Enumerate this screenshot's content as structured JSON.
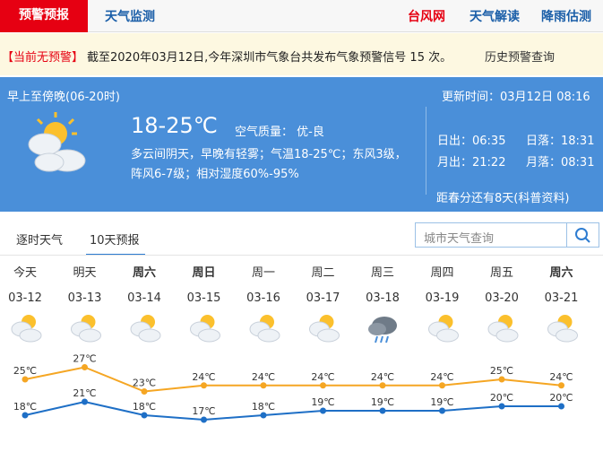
{
  "nav": {
    "active": "预警预报",
    "tab": "天气监测",
    "links": [
      "台风网",
      "天气解读",
      "降雨估测"
    ]
  },
  "alert": {
    "status": "【当前无预警】",
    "text": "截至2020年03月12日,今年深圳市气象台共发布气象预警信号 15 次。",
    "link": "历史预警查询"
  },
  "today": {
    "period": "早上至傍晚(06-20时)",
    "updated": "更新时间：03月12日 08:16",
    "temp": "18-25℃",
    "air_quality": "空气质量： 优-良",
    "description": [
      "多云间阴天，早晚有轻雾；气温18-25℃；东风3级，",
      "阵风6-7级；相对湿度60%-95%"
    ],
    "sun_moon": [
      "日出：06:35",
      "日落：18:31",
      "月出：21:22",
      "月落：08:31"
    ],
    "countdown": "距春分还有8天(科普资料)"
  },
  "tabs": [
    "逐时天气",
    "10天预报"
  ],
  "search_placeholder": "城市天气查询",
  "forecast": {
    "days": [
      "今天",
      "明天",
      "周六",
      "周日",
      "周一",
      "周二",
      "周三",
      "周四",
      "周五",
      "周六"
    ],
    "dates": [
      "03-12",
      "03-13",
      "03-14",
      "03-15",
      "03-16",
      "03-17",
      "03-18",
      "03-19",
      "03-20",
      "03-21"
    ],
    "highs": [
      25,
      27,
      23,
      24,
      24,
      24,
      24,
      24,
      25,
      24
    ],
    "high_labels": [
      "25℃",
      "27℃",
      "23℃",
      "24℃",
      "24℃",
      "24℃",
      "24℃",
      "24℃",
      "25℃",
      "24℃"
    ],
    "lows": [
      18,
      21,
      18,
      17,
      18,
      19,
      19,
      19,
      20,
      20
    ],
    "low_labels": [
      "18℃",
      "21℃",
      "18℃",
      "17℃",
      "18℃",
      "19℃",
      "19℃",
      "19℃",
      "20℃",
      "20℃"
    ]
  }
}
